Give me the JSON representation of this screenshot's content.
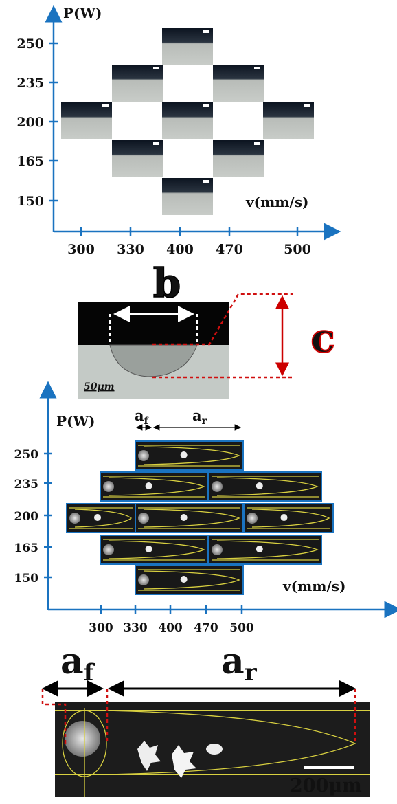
{
  "panel_a": {
    "y_axis": {
      "label": "P(W)",
      "ticks": [
        250,
        235,
        200,
        165,
        150
      ]
    },
    "x_axis": {
      "label": "v(mm/s)",
      "ticks": [
        300,
        330,
        400,
        470,
        500
      ]
    }
  },
  "panel_b": {
    "width_label": "b",
    "depth_label": "c",
    "scale_bar": "50μm"
  },
  "panel_c": {
    "y_axis": {
      "label": "P(W)",
      "ticks": [
        250,
        235,
        200,
        165,
        150
      ]
    },
    "x_axis": {
      "label": "v(mm/s)",
      "ticks": [
        300,
        330,
        400,
        470,
        500
      ]
    },
    "front_length": {
      "base": "a",
      "sub": "f"
    },
    "rear_length": {
      "base": "a",
      "sub": "r"
    }
  },
  "panel_d": {
    "front_length": {
      "base": "a",
      "sub": "f"
    },
    "rear_length": {
      "base": "a",
      "sub": "r"
    },
    "scale_bar": "200μm"
  }
}
